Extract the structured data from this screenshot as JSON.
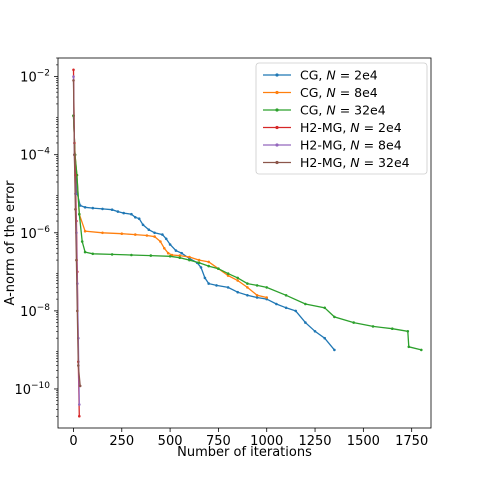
{
  "chart_data": {
    "type": "line",
    "title": "",
    "xlabel": "Number of iterations",
    "ylabel": "A-norm of the error",
    "xscale": "linear",
    "yscale": "log",
    "xlim": [
      -80,
      1850
    ],
    "ylim": [
      1e-11,
      0.03
    ],
    "xticks": [
      0,
      250,
      500,
      750,
      1000,
      1250,
      1500,
      1750
    ],
    "yticks": [
      {
        "value": 1e-10,
        "base": "10",
        "exp": "−10"
      },
      {
        "value": 1e-08,
        "base": "10",
        "exp": "−8"
      },
      {
        "value": 1e-06,
        "base": "10",
        "exp": "−6"
      },
      {
        "value": 0.0001,
        "base": "10",
        "exp": "−4"
      },
      {
        "value": 0.01,
        "base": "10",
        "exp": "−2"
      }
    ],
    "grid": false,
    "legend_position": "top-right",
    "series": [
      {
        "label_prefix": "CG, ",
        "label_var": "N",
        "label_suffix": " = 2e4",
        "color": "#1f77b4",
        "points": [
          [
            0,
            0.001
          ],
          [
            8,
            0.0001
          ],
          [
            20,
            1e-05
          ],
          [
            35,
            5e-06
          ],
          [
            60,
            4.5e-06
          ],
          [
            100,
            4.3e-06
          ],
          [
            150,
            4.1e-06
          ],
          [
            200,
            3.9e-06
          ],
          [
            230,
            3.5e-06
          ],
          [
            260,
            3.2e-06
          ],
          [
            300,
            3e-06
          ],
          [
            320,
            2.5e-06
          ],
          [
            340,
            2.3e-06
          ],
          [
            360,
            1.6e-06
          ],
          [
            390,
            1.2e-06
          ],
          [
            420,
            1e-06
          ],
          [
            460,
            9e-07
          ],
          [
            480,
            7e-07
          ],
          [
            500,
            5e-07
          ],
          [
            530,
            3.5e-07
          ],
          [
            560,
            3e-07
          ],
          [
            600,
            2.2e-07
          ],
          [
            640,
            1.7e-07
          ],
          [
            660,
            1.3e-07
          ],
          [
            680,
            7e-08
          ],
          [
            700,
            5e-08
          ],
          [
            740,
            4.5e-08
          ],
          [
            800,
            4e-08
          ],
          [
            850,
            3e-08
          ],
          [
            900,
            2.5e-08
          ],
          [
            950,
            2.2e-08
          ],
          [
            1000,
            2e-08
          ],
          [
            1050,
            1.5e-08
          ],
          [
            1100,
            1.2e-08
          ],
          [
            1150,
            1e-08
          ],
          [
            1200,
            5e-09
          ],
          [
            1250,
            3e-09
          ],
          [
            1300,
            2e-09
          ],
          [
            1350,
            1e-09
          ]
        ]
      },
      {
        "label_prefix": "CG, ",
        "label_var": "N",
        "label_suffix": " = 8e4",
        "color": "#ff7f0e",
        "points": [
          [
            0,
            0.001
          ],
          [
            8,
            0.0001
          ],
          [
            18,
            3e-05
          ],
          [
            30,
            3e-06
          ],
          [
            60,
            1.1e-06
          ],
          [
            150,
            1e-06
          ],
          [
            250,
            9.5e-07
          ],
          [
            320,
            9e-07
          ],
          [
            380,
            8.5e-07
          ],
          [
            420,
            8e-07
          ],
          [
            450,
            6e-07
          ],
          [
            470,
            4e-07
          ],
          [
            490,
            3e-07
          ],
          [
            510,
            2.7e-07
          ],
          [
            550,
            2.6e-07
          ],
          [
            600,
            2.4e-07
          ],
          [
            650,
            2e-07
          ],
          [
            700,
            1.8e-07
          ],
          [
            750,
            1.2e-07
          ],
          [
            800,
            8e-08
          ],
          [
            850,
            6e-08
          ],
          [
            900,
            4e-08
          ],
          [
            950,
            2.5e-08
          ],
          [
            1000,
            2.2e-08
          ]
        ]
      },
      {
        "label_prefix": "CG, ",
        "label_var": "N",
        "label_suffix": " = 32e4",
        "color": "#2ca02c",
        "points": [
          [
            0,
            0.001
          ],
          [
            8,
            0.0001
          ],
          [
            18,
            3e-05
          ],
          [
            30,
            3e-06
          ],
          [
            45,
            6e-07
          ],
          [
            60,
            3.2e-07
          ],
          [
            100,
            2.9e-07
          ],
          [
            200,
            2.8e-07
          ],
          [
            300,
            2.7e-07
          ],
          [
            400,
            2.6e-07
          ],
          [
            500,
            2.5e-07
          ],
          [
            550,
            2.3e-07
          ],
          [
            600,
            2e-07
          ],
          [
            650,
            1.7e-07
          ],
          [
            700,
            1.4e-07
          ],
          [
            750,
            1.2e-07
          ],
          [
            800,
            9e-08
          ],
          [
            850,
            7e-08
          ],
          [
            900,
            5e-08
          ],
          [
            950,
            4.5e-08
          ],
          [
            1000,
            4e-08
          ],
          [
            1100,
            2.5e-08
          ],
          [
            1200,
            1.5e-08
          ],
          [
            1300,
            1.2e-08
          ],
          [
            1350,
            7e-09
          ],
          [
            1450,
            5e-09
          ],
          [
            1550,
            4e-09
          ],
          [
            1650,
            3.5e-09
          ],
          [
            1730,
            3e-09
          ],
          [
            1735,
            1.2e-09
          ],
          [
            1800,
            1e-09
          ]
        ]
      },
      {
        "label_prefix": "H2-MG, ",
        "label_var": "N",
        "label_suffix": " = 2e4",
        "color": "#d62728",
        "points": [
          [
            0,
            0.015
          ],
          [
            5,
            0.0002
          ],
          [
            10,
            3e-05
          ],
          [
            15,
            2e-06
          ],
          [
            20,
            1e-07
          ],
          [
            25,
            5e-10
          ],
          [
            30,
            2e-11
          ]
        ]
      },
      {
        "label_prefix": "H2-MG, ",
        "label_var": "N",
        "label_suffix": " = 8e4",
        "color": "#9467bd",
        "points": [
          [
            0,
            0.01
          ],
          [
            5,
            0.0001
          ],
          [
            10,
            1e-05
          ],
          [
            15,
            1e-06
          ],
          [
            20,
            5e-08
          ],
          [
            25,
            2e-09
          ],
          [
            30,
            4e-11
          ]
        ]
      },
      {
        "label_prefix": "H2-MG, ",
        "label_var": "N",
        "label_suffix": " = 32e4",
        "color": "#8c564b",
        "points": [
          [
            0,
            0.008
          ],
          [
            5,
            0.0001
          ],
          [
            10,
            4e-06
          ],
          [
            15,
            2e-07
          ],
          [
            20,
            1e-08
          ],
          [
            25,
            4e-10
          ],
          [
            35,
            1.2e-10
          ]
        ]
      }
    ]
  }
}
